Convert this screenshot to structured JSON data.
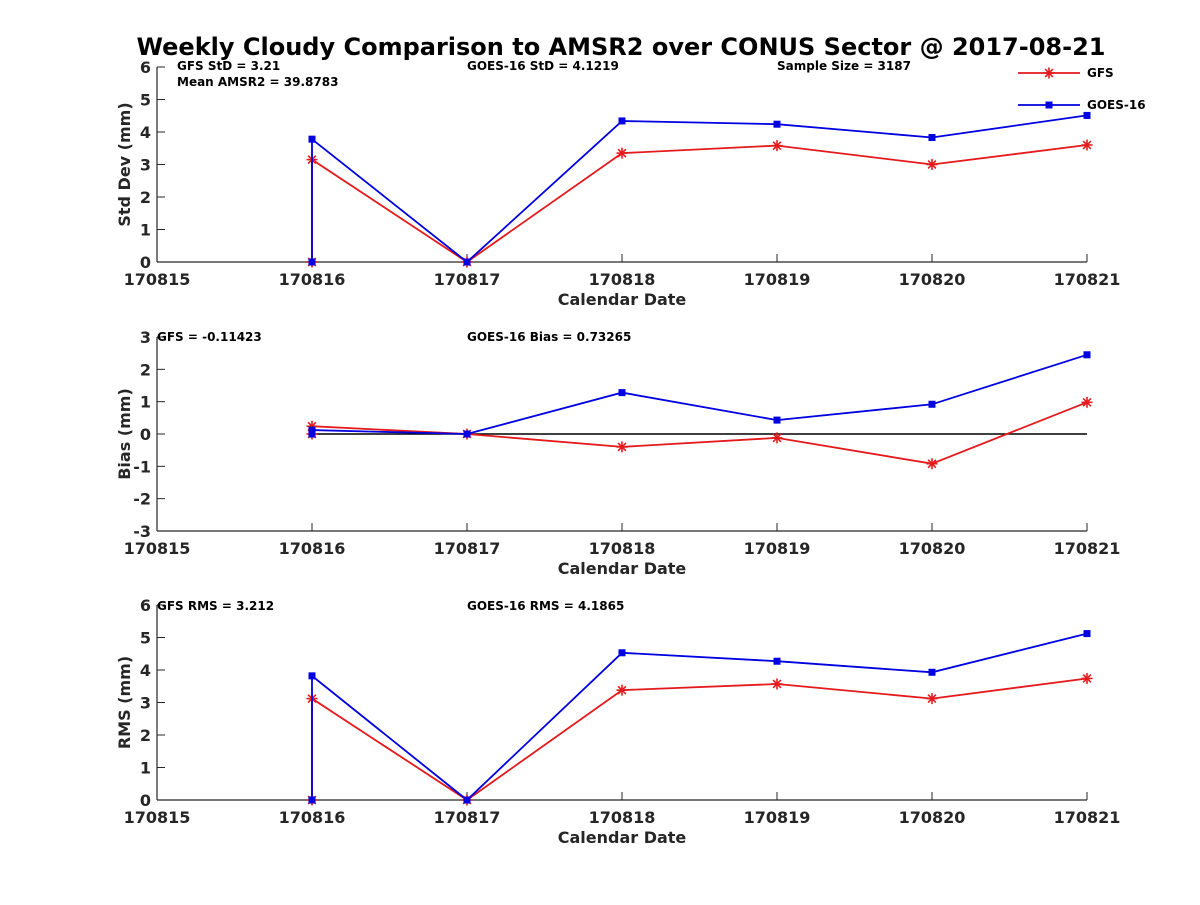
{
  "chart_data": {
    "title": "Weekly Cloudy Comparison to AMSR2 over CONUS Sector @ 2017-08-21",
    "colors": {
      "GFS": "#e41a1c",
      "GOES-16": "#0000e0",
      "zero_line": "#000000"
    },
    "legend": {
      "position": "top-right",
      "entries": [
        "GFS",
        "GOES-16"
      ]
    },
    "subplots": [
      {
        "type": "line",
        "ylabel": "Std Dev (mm)",
        "xlabel": "Calendar Date",
        "ylim": [
          0,
          6
        ],
        "yticks": [
          0,
          1,
          2,
          3,
          4,
          5,
          6
        ],
        "xlim": [
          170815,
          170821
        ],
        "xticks": [
          "170815",
          "170816",
          "170817",
          "170818",
          "170819",
          "170820",
          "170821"
        ],
        "zero_line": false,
        "annotations": [
          "GFS StD = 3.21",
          "GOES-16 StD = 4.1219",
          "Sample Size = 3187",
          "Mean AMSR2 = 39.8783"
        ],
        "series": [
          {
            "name": "GFS",
            "marker": "asterisk",
            "x": [
              170816,
              170816,
              170817,
              170818,
              170819,
              170820,
              170821
            ],
            "values": [
              0,
              3.15,
              0,
              3.35,
              3.58,
              3.0,
              3.6
            ]
          },
          {
            "name": "GOES-16",
            "marker": "square",
            "x": [
              170816,
              170816,
              170817,
              170818,
              170819,
              170820,
              170821
            ],
            "values": [
              0,
              3.78,
              0,
              4.34,
              4.24,
              3.83,
              4.51
            ]
          }
        ]
      },
      {
        "type": "line",
        "ylabel": "Bias (mm)",
        "xlabel": "Calendar Date",
        "ylim": [
          -3,
          3
        ],
        "yticks": [
          -3,
          -2,
          -1,
          0,
          1,
          2,
          3
        ],
        "xlim": [
          170815,
          170821
        ],
        "xticks": [
          "170815",
          "170816",
          "170817",
          "170818",
          "170819",
          "170820",
          "170821"
        ],
        "zero_line": true,
        "annotations": [
          "GFS = -0.11423",
          "GOES-16 Bias  = 0.73265"
        ],
        "series": [
          {
            "name": "GFS",
            "marker": "asterisk",
            "x": [
              170816,
              170816,
              170817,
              170818,
              170819,
              170820,
              170821
            ],
            "values": [
              0,
              0.24,
              0,
              -0.4,
              -0.12,
              -0.92,
              0.98
            ]
          },
          {
            "name": "GOES-16",
            "marker": "square",
            "x": [
              170816,
              170816,
              170817,
              170818,
              170819,
              170820,
              170821
            ],
            "values": [
              0,
              0.12,
              0,
              1.28,
              0.43,
              0.92,
              2.45
            ]
          }
        ]
      },
      {
        "type": "line",
        "ylabel": "RMS (mm)",
        "xlabel": "Calendar Date",
        "ylim": [
          0,
          6
        ],
        "yticks": [
          0,
          1,
          2,
          3,
          4,
          5,
          6
        ],
        "xlim": [
          170815,
          170821
        ],
        "xticks": [
          "170815",
          "170816",
          "170817",
          "170818",
          "170819",
          "170820",
          "170821"
        ],
        "zero_line": false,
        "annotations": [
          "GFS RMS = 3.212",
          "GOES-16 RMS = 4.1865"
        ],
        "series": [
          {
            "name": "GFS",
            "marker": "asterisk",
            "x": [
              170816,
              170816,
              170817,
              170818,
              170819,
              170820,
              170821
            ],
            "values": [
              0,
              3.12,
              0,
              3.38,
              3.57,
              3.12,
              3.74
            ]
          },
          {
            "name": "GOES-16",
            "marker": "square",
            "x": [
              170816,
              170816,
              170817,
              170818,
              170819,
              170820,
              170821
            ],
            "values": [
              0,
              3.82,
              0,
              4.53,
              4.27,
              3.93,
              5.12
            ]
          }
        ]
      }
    ]
  }
}
